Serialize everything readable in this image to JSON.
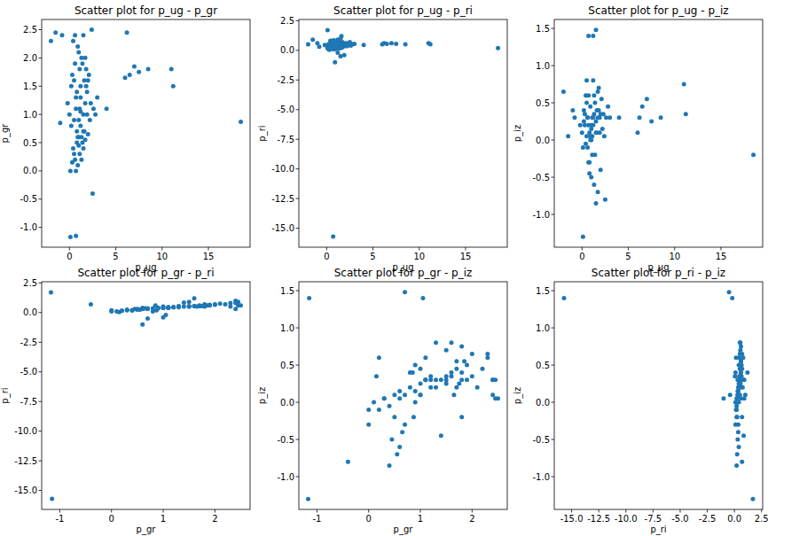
{
  "chart_data": [
    {
      "type": "scatter",
      "title": "Scatter plot for p_ug - p_gr",
      "x_label": "p_ug",
      "y_label": "p_gr",
      "color": "#1f77b4",
      "marker": "o",
      "x": [
        0.5,
        0.8,
        1.0,
        1.2,
        1.5,
        1.7,
        1.9,
        2.0,
        1.8,
        1.3,
        0.9,
        0.6,
        0.3,
        0.2,
        0.7,
        1.1,
        2.3,
        2.6,
        2.2,
        1.6,
        0.4,
        0.6,
        0.9,
        1.1,
        1.4,
        0.8,
        1.0,
        1.3,
        1.5,
        1.7,
        2.0,
        0.5,
        0.7,
        1.2,
        1.8,
        2.1,
        1.4,
        1.0,
        0.4,
        0.1,
        0.3,
        0.2,
        1.9,
        0.9,
        1.2,
        1.5,
        2.4,
        1.6,
        0.8,
        1.1,
        2.8,
        3.0,
        0.0,
        -0.2,
        0.6,
        1.3,
        0.5,
        1.7,
        1.0,
        0.7,
        18.5,
        0.7,
        0.1,
        1.5,
        1.2,
        2.5,
        6.2,
        6.5,
        7.0,
        6.0,
        7.5,
        8.5,
        11.0,
        11.2,
        -2.0,
        -1.5,
        -1.0,
        -0.8,
        4.0
      ],
      "y": [
        0.3,
        0.5,
        0.6,
        0.8,
        1.0,
        1.2,
        1.4,
        1.6,
        1.8,
        2.0,
        2.2,
        1.9,
        1.7,
        1.5,
        1.3,
        1.1,
        1.2,
        1.1,
        0.9,
        0.7,
        0.4,
        0.2,
        0.1,
        0.3,
        0.5,
        0.7,
        0.45,
        0.6,
        0.4,
        0.55,
        0.65,
        0.9,
        1.1,
        1.3,
        1.5,
        1.7,
        1.9,
        2.1,
        2.3,
        0.0,
        0.15,
        0.8,
        1.0,
        0.6,
        1.5,
        2.4,
        2.5,
        1.6,
        1.4,
        1.8,
        1.0,
        1.3,
        1.0,
        1.2,
        2.4,
        0.2,
        1.6,
        2.0,
        0.9,
        0.0,
        0.87,
        -1.15,
        -1.17,
        0.7,
        1.05,
        -0.4,
        2.45,
        1.7,
        1.85,
        1.65,
        1.75,
        1.8,
        1.8,
        1.5,
        2.3,
        2.45,
        0.85,
        2.4,
        1.1
      ],
      "xlim": [
        -3,
        19.5
      ],
      "xticks": [
        0,
        5,
        10,
        15
      ],
      "ylim": [
        -1.35,
        2.68
      ],
      "yticks": [
        {
          "value": -1,
          "label": "-1.0"
        },
        {
          "value": -0.5,
          "label": "-0.5"
        },
        {
          "value": 0,
          "label": "0.0"
        },
        {
          "value": 0.5,
          "label": "0.5"
        },
        {
          "value": 1,
          "label": "1.0"
        },
        {
          "value": 1.5,
          "label": "1.5"
        },
        {
          "value": 2,
          "label": "2.0"
        },
        {
          "value": 2.5,
          "label": "2.5"
        }
      ]
    },
    {
      "type": "scatter",
      "title": "Scatter plot for p_ug - p_ri",
      "x_label": "p_ug",
      "y_label": "p_ri",
      "color": "#1f77b4",
      "marker": "o",
      "x": [
        0.5,
        0.8,
        1.0,
        1.2,
        1.5,
        1.7,
        1.9,
        2.0,
        1.8,
        1.3,
        0.9,
        0.6,
        0.3,
        0.2,
        0.7,
        1.1,
        2.3,
        2.6,
        2.2,
        1.6,
        0.4,
        0.6,
        0.9,
        1.1,
        1.4,
        0.8,
        1.0,
        1.3,
        1.5,
        1.7,
        2.0,
        0.5,
        0.7,
        1.2,
        1.8,
        2.1,
        1.4,
        1.0,
        0.4,
        0.1,
        0.3,
        0.2,
        1.9,
        0.9,
        1.2,
        1.5,
        2.4,
        1.6,
        0.8,
        1.1,
        2.8,
        3.0,
        0.0,
        -0.2,
        0.6,
        1.3,
        0.5,
        1.7,
        1.0,
        0.7,
        18.5,
        0.7,
        0.1,
        1.5,
        1.2,
        2.5,
        6.2,
        6.5,
        7.0,
        6.0,
        7.5,
        8.5,
        11.0,
        11.2,
        -2.0,
        -1.5,
        -1.0,
        -0.8,
        4.0
      ],
      "y": [
        0.25,
        0.3,
        0.3,
        0.35,
        0.4,
        0.45,
        0.5,
        0.55,
        0.6,
        0.65,
        0.7,
        0.6,
        0.55,
        0.5,
        0.45,
        0.4,
        0.45,
        0.4,
        0.35,
        0.3,
        0.2,
        0.15,
        0.1,
        0.2,
        0.25,
        0.35,
        0.3,
        0.4,
        0.2,
        0.25,
        0.35,
        0.4,
        0.45,
        0.5,
        0.55,
        0.6,
        0.65,
        0.75,
        0.8,
        0.2,
        0.05,
        0.1,
        -0.4,
        -1.0,
        0.9,
        1.0,
        0.6,
        1.2,
        0.85,
        0.7,
        0.5,
        0.55,
        0.4,
        0.45,
        0.8,
        0.15,
        0.55,
        0.7,
        0.4,
        0.1,
        0.2,
        -15.7,
        1.7,
        -0.5,
        -0.2,
        0.7,
        0.6,
        0.55,
        0.6,
        0.5,
        0.55,
        0.5,
        0.6,
        0.5,
        0.5,
        0.9,
        0.6,
        0.3,
        0.45
      ],
      "xlim": [
        -3,
        19.5
      ],
      "xticks": [
        0,
        5,
        10,
        15
      ],
      "ylim": [
        -16.6,
        2.6
      ],
      "yticks": [
        {
          "value": -15,
          "label": "-15.0"
        },
        {
          "value": -12.5,
          "label": "-12.5"
        },
        {
          "value": -10,
          "label": "-10.0"
        },
        {
          "value": -7.5,
          "label": "-7.5"
        },
        {
          "value": -5,
          "label": "-5.0"
        },
        {
          "value": -2.5,
          "label": "-2.5"
        },
        {
          "value": 0,
          "label": "0.0"
        },
        {
          "value": 2.5,
          "label": "2.5"
        }
      ]
    },
    {
      "type": "scatter",
      "title": "Scatter plot for p_ug - p_iz",
      "x_label": "p_ug",
      "y_label": "p_iz",
      "color": "#1f77b4",
      "marker": "o",
      "x": [
        0.5,
        0.8,
        1.0,
        1.2,
        1.5,
        1.7,
        1.9,
        2.0,
        1.8,
        1.3,
        0.9,
        0.6,
        0.3,
        0.2,
        0.7,
        1.1,
        2.3,
        2.6,
        2.2,
        1.6,
        0.4,
        0.6,
        0.9,
        1.1,
        1.4,
        0.8,
        1.0,
        1.3,
        1.5,
        1.7,
        2.0,
        0.5,
        0.7,
        1.2,
        1.8,
        2.1,
        1.4,
        1.0,
        0.4,
        0.1,
        0.3,
        0.2,
        1.9,
        0.9,
        1.2,
        1.5,
        2.4,
        1.6,
        0.8,
        1.1,
        2.8,
        3.0,
        0.0,
        -0.2,
        0.6,
        1.3,
        0.5,
        1.7,
        1.0,
        0.7,
        18.5,
        0.7,
        0.1,
        1.5,
        1.2,
        2.5,
        6.2,
        6.5,
        7.0,
        6.0,
        7.5,
        8.5,
        11.0,
        11.2,
        -2.0,
        -1.5,
        -1.0,
        -0.8,
        4.0
      ],
      "y": [
        0.05,
        0.1,
        0.15,
        0.2,
        0.25,
        0.3,
        0.3,
        0.35,
        0.4,
        0.35,
        0.45,
        0.3,
        0.2,
        0.25,
        0.2,
        0.3,
        0.35,
        0.3,
        0.15,
        0.1,
        -0.05,
        -0.1,
        0.0,
        0.05,
        -0.2,
        -0.3,
        -0.5,
        -0.6,
        -0.85,
        -0.7,
        -0.4,
        0.5,
        0.6,
        0.8,
        0.7,
        0.55,
        0.5,
        0.2,
        0.6,
        -0.1,
        0.35,
        0.4,
        0.1,
        0.05,
        0.3,
        0.1,
        0.05,
        0.4,
        -0.45,
        -0.2,
        0.45,
        0.3,
        0.1,
        0.2,
        0.3,
        0.6,
        0.8,
        0.65,
        0.0,
        -0.3,
        -0.2,
        1.4,
        -1.3,
        1.48,
        1.4,
        -0.8,
        0.3,
        0.45,
        0.55,
        0.1,
        0.25,
        0.3,
        0.75,
        0.35,
        0.65,
        0.05,
        0.4,
        0.3,
        0.3
      ],
      "xlim": [
        -3,
        19.5
      ],
      "xticks": [
        0,
        5,
        10,
        15
      ],
      "ylim": [
        -1.44,
        1.62
      ],
      "yticks": [
        {
          "value": -1,
          "label": "-1.0"
        },
        {
          "value": -0.5,
          "label": "-0.5"
        },
        {
          "value": 0,
          "label": "0.0"
        },
        {
          "value": 0.5,
          "label": "0.5"
        },
        {
          "value": 1,
          "label": "1.0"
        },
        {
          "value": 1.5,
          "label": "1.5"
        }
      ]
    },
    {
      "type": "scatter",
      "title": "Scatter plot for p_gr - p_ri",
      "x_label": "p_gr",
      "y_label": "p_ri",
      "color": "#1f77b4",
      "marker": "o",
      "x": [
        0.3,
        0.5,
        0.6,
        0.8,
        1.0,
        1.2,
        1.4,
        1.6,
        1.8,
        2.0,
        2.2,
        1.9,
        1.7,
        1.5,
        1.3,
        1.1,
        1.2,
        1.1,
        0.9,
        0.7,
        0.4,
        0.2,
        0.1,
        0.3,
        0.5,
        0.7,
        0.45,
        0.6,
        0.4,
        0.55,
        0.65,
        0.9,
        1.1,
        1.3,
        1.5,
        1.7,
        1.9,
        2.1,
        2.3,
        0.0,
        0.15,
        0.8,
        1.0,
        0.6,
        1.5,
        2.4,
        2.5,
        1.6,
        1.4,
        1.8,
        1.0,
        1.3,
        1.0,
        1.2,
        2.4,
        0.2,
        1.6,
        2.0,
        0.9,
        0.0,
        0.87,
        -1.15,
        -1.17,
        0.7,
        1.05,
        -0.4,
        2.45,
        1.7,
        1.85,
        1.65,
        1.75,
        1.8,
        1.8,
        1.5,
        2.3,
        2.45,
        0.85,
        2.4,
        1.1
      ],
      "y": [
        0.25,
        0.3,
        0.3,
        0.35,
        0.4,
        0.45,
        0.5,
        0.55,
        0.6,
        0.65,
        0.7,
        0.6,
        0.55,
        0.5,
        0.45,
        0.4,
        0.45,
        0.4,
        0.35,
        0.3,
        0.2,
        0.15,
        0.1,
        0.2,
        0.25,
        0.35,
        0.3,
        0.4,
        0.2,
        0.25,
        0.35,
        0.4,
        0.45,
        0.5,
        0.55,
        0.6,
        0.65,
        0.75,
        0.8,
        0.2,
        0.05,
        0.1,
        -0.4,
        -1.0,
        0.9,
        1.0,
        0.6,
        1.2,
        0.85,
        0.7,
        0.5,
        0.55,
        0.4,
        0.45,
        0.8,
        0.15,
        0.55,
        0.7,
        0.4,
        0.1,
        0.2,
        -15.7,
        1.7,
        -0.5,
        -0.2,
        0.7,
        0.6,
        0.55,
        0.6,
        0.5,
        0.55,
        0.5,
        0.6,
        0.5,
        0.5,
        0.9,
        0.6,
        0.3,
        0.45
      ],
      "xlim": [
        -1.35,
        2.68
      ],
      "xticks": [
        -1,
        0,
        1,
        2
      ],
      "ylim": [
        -16.6,
        2.6
      ],
      "yticks": [
        {
          "value": -15,
          "label": "-15.0"
        },
        {
          "value": -12.5,
          "label": "-12.5"
        },
        {
          "value": -10,
          "label": "-10.0"
        },
        {
          "value": -7.5,
          "label": "-7.5"
        },
        {
          "value": -5,
          "label": "-5.0"
        },
        {
          "value": -2.5,
          "label": "-2.5"
        },
        {
          "value": 0,
          "label": "0.0"
        },
        {
          "value": 2.5,
          "label": "2.5"
        }
      ]
    },
    {
      "type": "scatter",
      "title": "Scatter plot for p_gr - p_iz",
      "x_label": "p_gr",
      "y_label": "p_iz",
      "color": "#1f77b4",
      "marker": "o",
      "x": [
        0.3,
        0.5,
        0.6,
        0.8,
        1.0,
        1.2,
        1.4,
        1.6,
        1.8,
        2.0,
        2.2,
        1.9,
        1.7,
        1.5,
        1.3,
        1.1,
        1.2,
        1.1,
        0.9,
        0.7,
        0.4,
        0.2,
        0.1,
        0.3,
        0.5,
        0.7,
        0.45,
        0.6,
        0.4,
        0.55,
        0.65,
        0.9,
        1.1,
        1.3,
        1.5,
        1.7,
        1.9,
        2.1,
        2.3,
        0.0,
        0.15,
        0.8,
        1.0,
        0.6,
        1.5,
        2.4,
        2.5,
        1.6,
        1.4,
        1.8,
        1.0,
        1.3,
        1.0,
        1.2,
        2.4,
        0.2,
        1.6,
        2.0,
        0.9,
        0.0,
        0.87,
        -1.15,
        -1.17,
        0.7,
        1.05,
        -0.4,
        2.45,
        1.7,
        1.85,
        1.65,
        1.75,
        1.8,
        1.8,
        1.5,
        2.3,
        2.45,
        0.85,
        2.4,
        1.1
      ],
      "y": [
        0.05,
        0.1,
        0.15,
        0.2,
        0.25,
        0.3,
        0.3,
        0.35,
        0.4,
        0.35,
        0.45,
        0.3,
        0.2,
        0.25,
        0.2,
        0.3,
        0.35,
        0.3,
        0.15,
        0.1,
        -0.05,
        -0.1,
        0.0,
        0.05,
        -0.2,
        -0.3,
        -0.5,
        -0.6,
        -0.85,
        -0.7,
        -0.4,
        0.5,
        0.6,
        0.8,
        0.7,
        0.55,
        0.5,
        0.2,
        0.6,
        -0.1,
        0.35,
        0.4,
        0.1,
        0.05,
        0.3,
        0.1,
        0.05,
        0.4,
        -0.45,
        -0.2,
        0.45,
        0.3,
        0.1,
        0.2,
        0.3,
        0.6,
        0.8,
        0.65,
        0.0,
        -0.3,
        -0.2,
        1.4,
        -1.3,
        1.48,
        1.4,
        -0.8,
        0.3,
        0.45,
        0.55,
        0.1,
        0.25,
        0.3,
        0.75,
        0.35,
        0.65,
        0.05,
        0.4,
        0.3,
        0.3
      ],
      "xlim": [
        -1.35,
        2.68
      ],
      "xticks": [
        -1,
        0,
        1,
        2
      ],
      "ylim": [
        -1.44,
        1.62
      ],
      "yticks": [
        {
          "value": -1,
          "label": "-1.0"
        },
        {
          "value": -0.5,
          "label": "-0.5"
        },
        {
          "value": 0,
          "label": "0.0"
        },
        {
          "value": 0.5,
          "label": "0.5"
        },
        {
          "value": 1,
          "label": "1.0"
        },
        {
          "value": 1.5,
          "label": "1.5"
        }
      ]
    },
    {
      "type": "scatter",
      "title": "Scatter plot for p_ri - p_iz",
      "x_label": "p_ri",
      "y_label": "p_iz",
      "color": "#1f77b4",
      "marker": "o",
      "x": [
        0.25,
        0.3,
        0.3,
        0.35,
        0.4,
        0.45,
        0.5,
        0.55,
        0.6,
        0.65,
        0.7,
        0.6,
        0.55,
        0.5,
        0.45,
        0.4,
        0.45,
        0.4,
        0.35,
        0.3,
        0.2,
        0.15,
        0.1,
        0.2,
        0.25,
        0.35,
        0.3,
        0.4,
        0.2,
        0.25,
        0.35,
        0.4,
        0.45,
        0.5,
        0.55,
        0.6,
        0.65,
        0.75,
        0.8,
        0.2,
        0.05,
        0.1,
        -0.4,
        -1.0,
        0.9,
        1.0,
        0.6,
        1.2,
        0.85,
        0.7,
        0.5,
        0.55,
        0.4,
        0.45,
        0.8,
        0.15,
        0.55,
        0.7,
        0.4,
        0.1,
        0.2,
        -15.7,
        1.7,
        -0.5,
        -0.2,
        0.7,
        0.6,
        0.55,
        0.6,
        0.5,
        0.55,
        0.5,
        0.6,
        0.5,
        0.5,
        0.9,
        0.6,
        0.3,
        0.45
      ],
      "y": [
        0.05,
        0.1,
        0.15,
        0.2,
        0.25,
        0.3,
        0.3,
        0.35,
        0.4,
        0.35,
        0.45,
        0.3,
        0.2,
        0.25,
        0.2,
        0.3,
        0.35,
        0.3,
        0.15,
        0.1,
        -0.05,
        -0.1,
        0.0,
        0.05,
        -0.2,
        -0.3,
        -0.5,
        -0.6,
        -0.85,
        -0.7,
        -0.4,
        0.5,
        0.6,
        0.8,
        0.7,
        0.55,
        0.5,
        0.2,
        0.6,
        -0.1,
        0.35,
        0.4,
        0.1,
        0.05,
        0.3,
        0.1,
        0.05,
        0.4,
        -0.45,
        -0.2,
        0.45,
        0.3,
        0.1,
        0.2,
        0.3,
        0.6,
        0.8,
        0.65,
        0.0,
        -0.3,
        -0.2,
        1.4,
        -1.3,
        1.48,
        1.4,
        -0.8,
        0.3,
        0.45,
        0.55,
        0.1,
        0.25,
        0.3,
        0.75,
        0.35,
        0.65,
        0.05,
        0.4,
        0.3,
        0.3
      ],
      "xlim": [
        -16.6,
        2.6
      ],
      "xticks": [
        {
          "value": -15,
          "label": "-15.0"
        },
        {
          "value": -12.5,
          "label": "-12.5"
        },
        {
          "value": -10,
          "label": "-10.0"
        },
        {
          "value": -7.5,
          "label": "-7.5"
        },
        {
          "value": -5,
          "label": "-5.0"
        },
        {
          "value": -2.5,
          "label": "-2.5"
        },
        {
          "value": 0,
          "label": "0.0"
        },
        {
          "value": 2.5,
          "label": "2.5"
        }
      ],
      "ylim": [
        -1.44,
        1.62
      ],
      "yticks": [
        {
          "value": -1,
          "label": "-1.0"
        },
        {
          "value": -0.5,
          "label": "-0.5"
        },
        {
          "value": 0,
          "label": "0.0"
        },
        {
          "value": 0.5,
          "label": "0.5"
        },
        {
          "value": 1,
          "label": "1.0"
        },
        {
          "value": 1.5,
          "label": "1.5"
        }
      ]
    }
  ]
}
